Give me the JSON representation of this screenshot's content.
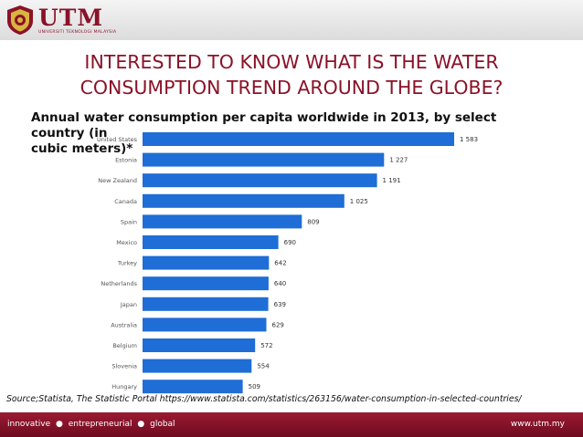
{
  "header": {
    "logo_text": "UTM",
    "logo_subtext": "UNIVERSITI TEKNOLOGI MALAYSIA"
  },
  "slide": {
    "title_line1": "INTERESTED TO KNOW WHAT IS THE WATER",
    "title_line2": "CONSUMPTION TREND AROUND THE GLOBE?",
    "subtitle_line1": "Annual water consumption per capita worldwide in 2013, by select country (in",
    "subtitle_line2": "cubic meters)*"
  },
  "chart_data": {
    "type": "bar",
    "orientation": "horizontal",
    "categories": [
      "United States",
      "Estonia",
      "New Zealand",
      "Canada",
      "Spain",
      "Mexico",
      "Turkey",
      "Netherlands",
      "Japan",
      "Australia",
      "Belgium",
      "Slovenia",
      "Hungary"
    ],
    "values": [
      1583,
      1227,
      1191,
      1025,
      809,
      690,
      642,
      640,
      639,
      629,
      572,
      554,
      509
    ],
    "value_labels": [
      "1 583",
      "1 227",
      "1 191",
      "1 025",
      "809",
      "690",
      "642",
      "640",
      "639",
      "629",
      "572",
      "554",
      "509"
    ],
    "xlim": [
      0,
      1583
    ],
    "bar_color": "#1f6dd6",
    "grid": false,
    "title": "Annual water consumption per capita worldwide in 2013, by select country (in cubic meters)*"
  },
  "source_text": "Source;Statista, The Statistic Portal https://www.statista.com/statistics/263156/water-consumption-in-selected-countries/",
  "footer": {
    "tag1": "innovative",
    "tag2": "entrepreneurial",
    "tag3": "global",
    "separator": "●",
    "website": "www.utm.my"
  },
  "colors": {
    "brand": "#8a1228",
    "footer": "#8a1228",
    "bar": "#1f6dd6"
  }
}
